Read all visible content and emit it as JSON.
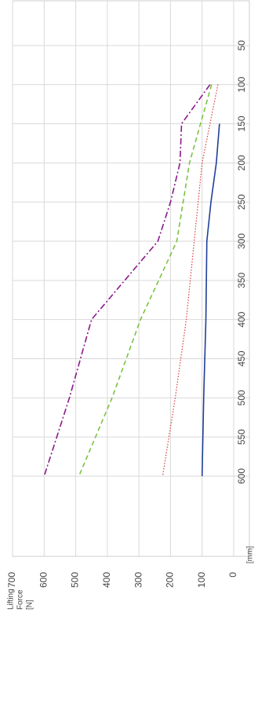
{
  "chart_data": {
    "type": "line",
    "orientation": "rotated-90-clockwise",
    "ylabel_lines": [
      "Lifting",
      "Force",
      "[N]"
    ],
    "x_unit": "[mm]",
    "xlim": [
      0,
      600
    ],
    "ylim": [
      0,
      700
    ],
    "x_ticks": [
      50,
      100,
      150,
      200,
      250,
      300,
      350,
      400,
      450,
      500,
      550,
      600
    ],
    "y_ticks": [
      0,
      100,
      200,
      300,
      400,
      500,
      600,
      700
    ],
    "grid": true,
    "series": [
      {
        "color": "#1f3f99",
        "dash": "solid",
        "x": [
          150,
          200,
          250,
          300,
          400,
          500,
          600
        ],
        "y": [
          45,
          55,
          72,
          85,
          88,
          95,
          100
        ]
      },
      {
        "color": "#e03a3a",
        "dash": "dotted",
        "x": [
          100,
          150,
          200,
          300,
          400,
          500,
          600
        ],
        "y": [
          50,
          75,
          100,
          125,
          150,
          185,
          225
        ]
      },
      {
        "color": "#7cc242",
        "dash": "dashed",
        "x": [
          100,
          150,
          200,
          250,
          300,
          400,
          500,
          600
        ],
        "y": [
          70,
          105,
          140,
          160,
          180,
          295,
          385,
          490
        ]
      },
      {
        "color": "#8a1a8a",
        "dash": "dashdot",
        "x": [
          100,
          150,
          200,
          250,
          300,
          400,
          500,
          600
        ],
        "y": [
          75,
          165,
          170,
          200,
          240,
          450,
          520,
          600
        ]
      }
    ]
  }
}
